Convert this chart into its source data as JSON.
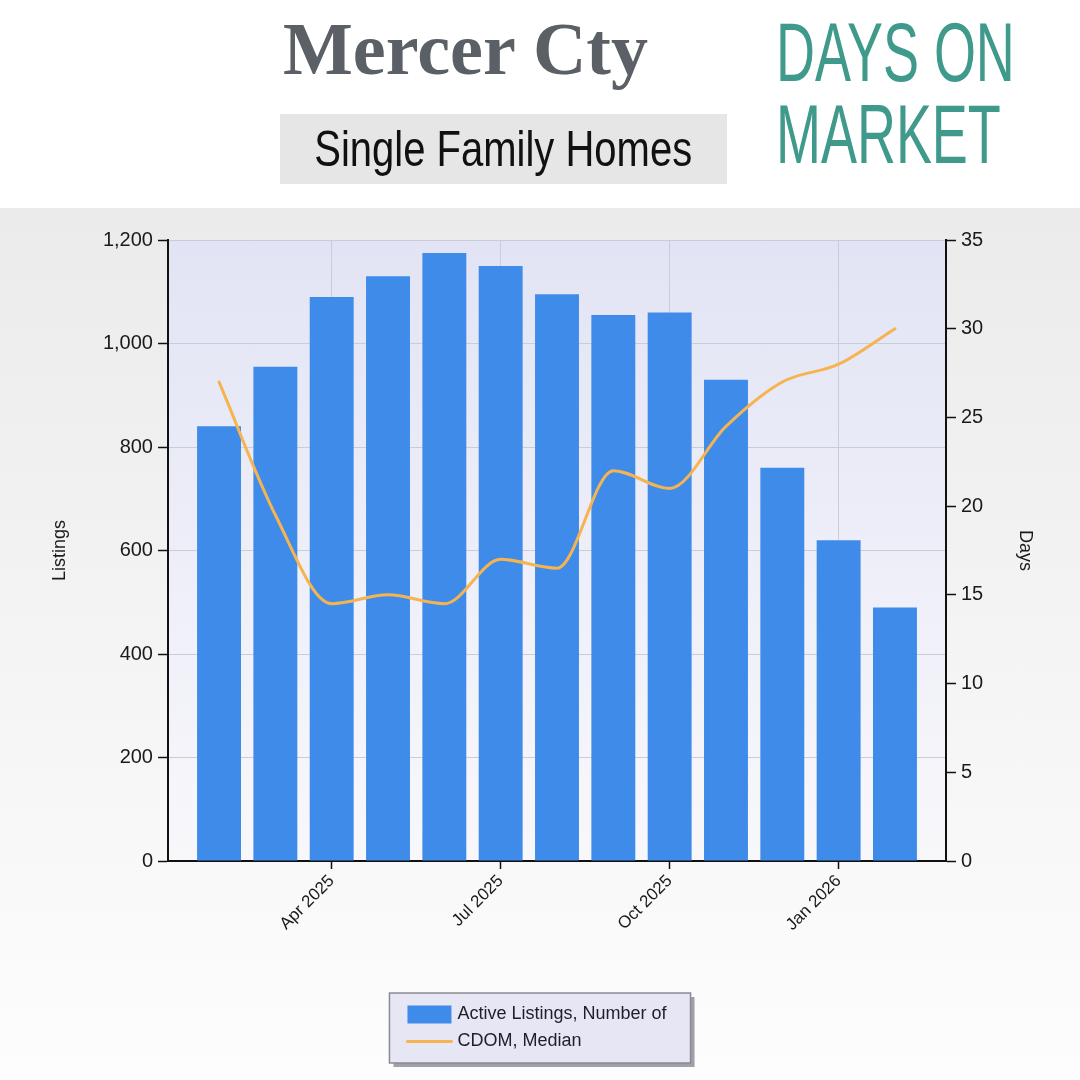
{
  "chart_data": {
    "type": "bar",
    "title": "DAYS ON MARKET",
    "subtitle": "Mercer Cty",
    "annotations": [
      "Single Family Homes"
    ],
    "ylabel": "Listings",
    "y2label": "Days",
    "categories": [
      null,
      null,
      "Apr 2025",
      null,
      null,
      "Jul 2025",
      null,
      null,
      "Oct 2025",
      null,
      null,
      "Jan 2026",
      null
    ],
    "series": [
      {
        "name": "Active Listings, Number of",
        "color": "#3f8bea",
        "values": [
          840,
          955,
          1090,
          1130,
          1175,
          1150,
          1095,
          1055,
          1060,
          930,
          760,
          620,
          490
        ]
      },
      {
        "name": "CDOM, Median",
        "type": "line",
        "axis": "y2",
        "color": "#f5b450",
        "values": [
          27,
          19.5,
          14.5,
          15,
          14.5,
          17,
          16.5,
          22,
          21,
          24.5,
          27,
          28,
          30
        ]
      }
    ],
    "ylim": [
      0,
      1200
    ],
    "yticks": [
      0,
      200,
      400,
      600,
      800,
      {
        "value": 1000,
        "label": "1,000"
      },
      {
        "value": 1200,
        "label": "1,200"
      }
    ],
    "y2lim": [
      0,
      35
    ],
    "y2ticks": [
      0,
      5,
      10,
      15,
      20,
      25,
      30,
      35
    ],
    "grid": true,
    "legend": "bottom",
    "marker": "none"
  }
}
